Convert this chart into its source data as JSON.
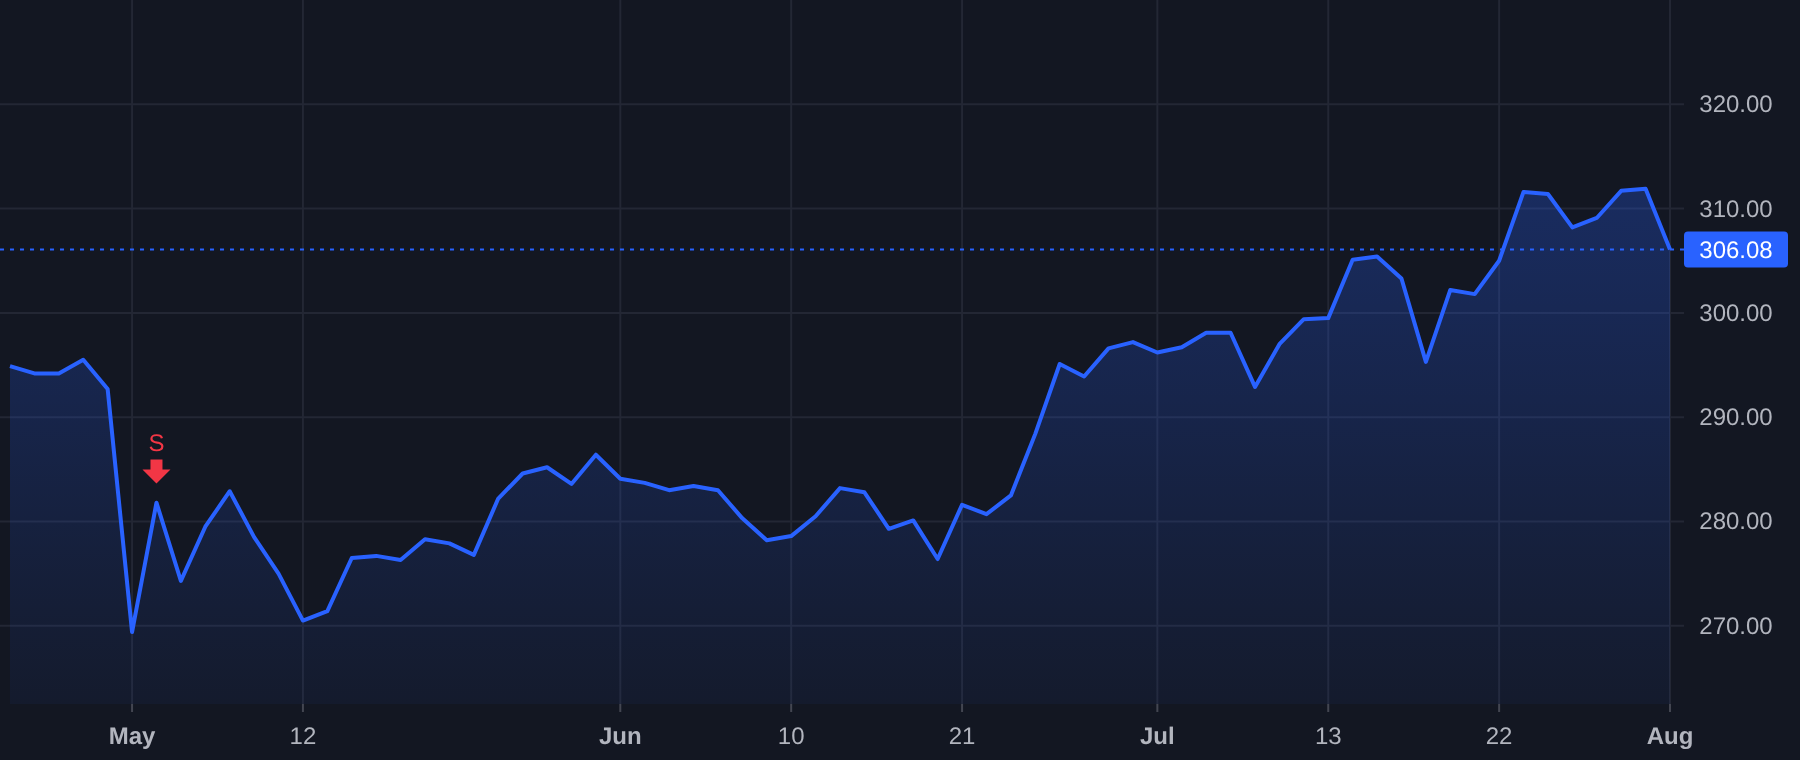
{
  "chart_data": {
    "type": "area",
    "categories": [
      null,
      null,
      null,
      null,
      null,
      "May",
      null,
      null,
      null,
      null,
      null,
      null,
      "12",
      null,
      null,
      null,
      null,
      null,
      null,
      null,
      null,
      null,
      null,
      null,
      null,
      "Jun",
      null,
      null,
      null,
      null,
      null,
      null,
      "10",
      null,
      null,
      null,
      null,
      null,
      null,
      "21",
      null,
      null,
      null,
      null,
      null,
      null,
      null,
      "Jul",
      null,
      null,
      null,
      null,
      null,
      null,
      "13",
      null,
      null,
      null,
      null,
      null,
      null,
      "22",
      null,
      null,
      null,
      null,
      null,
      null,
      "Aug"
    ],
    "series": [
      {
        "color": "#2962ff",
        "values": [
          294.9,
          294.2,
          294.2,
          295.5,
          292.7,
          269.4,
          281.8,
          274.3,
          279.5,
          282.9,
          278.5,
          275.0,
          270.5,
          271.4,
          276.5,
          276.7,
          276.3,
          278.3,
          277.9,
          276.8,
          282.2,
          284.6,
          285.2,
          283.6,
          286.4,
          284.1,
          283.7,
          283.0,
          283.4,
          283.0,
          280.3,
          278.2,
          278.6,
          280.5,
          283.2,
          282.8,
          279.3,
          280.1,
          276.4,
          281.6,
          280.7,
          282.5,
          288.4,
          295.1,
          293.9,
          296.6,
          297.2,
          296.2,
          296.7,
          298.1,
          298.1,
          292.9,
          297.0,
          299.4,
          299.5,
          305.1,
          305.4,
          303.3,
          295.3,
          302.2,
          301.8,
          305.0,
          311.6,
          311.4,
          308.2,
          309.1,
          311.7,
          311.9,
          306.08
        ]
      },
      {
        "name": "S",
        "type": "scatter",
        "marker": "triangle",
        "color": "#f23645",
        "values": [
          null,
          null,
          null,
          null,
          null,
          null,
          284.8,
          null,
          null,
          null,
          null,
          null,
          null,
          null,
          null,
          null,
          null,
          null,
          null,
          null,
          null,
          null,
          null,
          null,
          null,
          null,
          null,
          null,
          null,
          null,
          null,
          null,
          null,
          null,
          null,
          null,
          null,
          null,
          null,
          null,
          null,
          null,
          null,
          null,
          null,
          null,
          null,
          null,
          null,
          null,
          null,
          null,
          null,
          null,
          null,
          null,
          null,
          null,
          null,
          null,
          null,
          null,
          null,
          null,
          null,
          null,
          null,
          null,
          null
        ]
      }
    ],
    "ylim": [
      262.5,
      330
    ],
    "yticks": [
      {
        "value": 270,
        "label": "270.00"
      },
      {
        "value": 280,
        "label": "280.00"
      },
      {
        "value": 290,
        "label": "290.00"
      },
      {
        "value": 300,
        "label": "300.00"
      },
      {
        "value": 310,
        "label": "310.00"
      },
      {
        "value": 320,
        "label": "320.00"
      }
    ],
    "grid": true,
    "ref_lines": [
      {
        "axis": "y",
        "value": 306.08,
        "label": "306.08",
        "color": "#2962ff",
        "line_style": "dotted"
      }
    ]
  }
}
